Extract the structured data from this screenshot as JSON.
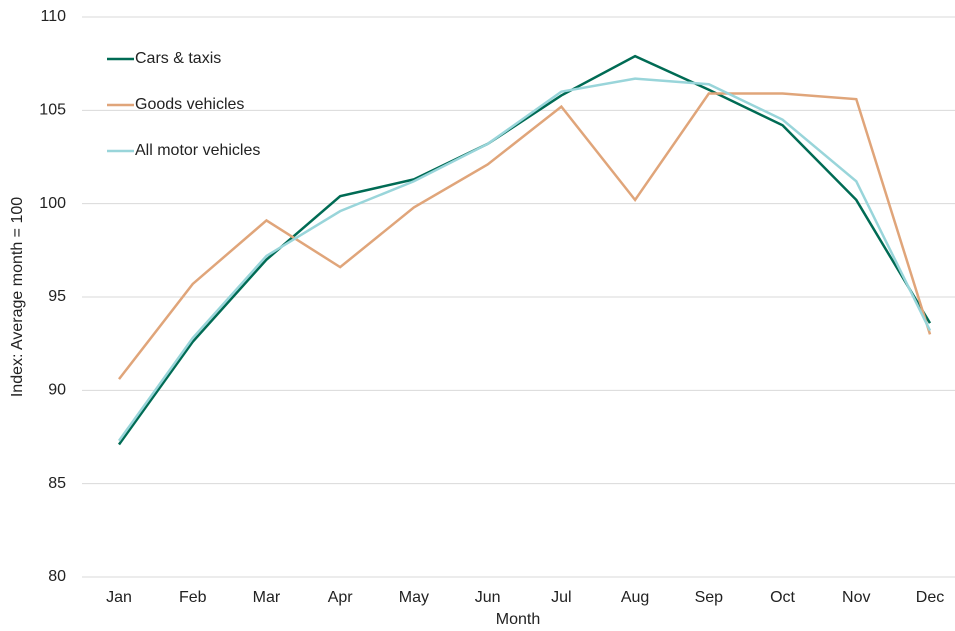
{
  "chart_data": {
    "type": "line",
    "x_label": "Month",
    "y_label": "Index: Average month  = 100",
    "categories": [
      "Jan",
      "Feb",
      "Mar",
      "Apr",
      "May",
      "Jun",
      "Jul",
      "Aug",
      "Sep",
      "Oct",
      "Nov",
      "Dec"
    ],
    "series": [
      {
        "name": "Cars & taxis",
        "color": "#006b54",
        "values": [
          87.1,
          92.6,
          97.0,
          100.4,
          101.3,
          103.2,
          105.8,
          107.9,
          106.1,
          104.2,
          100.2,
          93.6
        ]
      },
      {
        "name": "Goods vehicles",
        "color": "#e0a57a",
        "values": [
          90.6,
          95.7,
          99.1,
          96.6,
          99.8,
          102.1,
          105.2,
          100.2,
          105.9,
          105.9,
          105.6,
          93.0
        ]
      },
      {
        "name": "All motor vehicles",
        "color": "#99d5da",
        "values": [
          87.3,
          92.8,
          97.2,
          99.6,
          101.2,
          103.2,
          106.0,
          106.7,
          106.4,
          104.5,
          101.2,
          93.2
        ]
      }
    ],
    "ylim": [
      80,
      110
    ],
    "yticks": [
      80,
      85,
      90,
      95,
      100,
      105,
      110
    ],
    "grid": true,
    "legend": "top-left"
  }
}
